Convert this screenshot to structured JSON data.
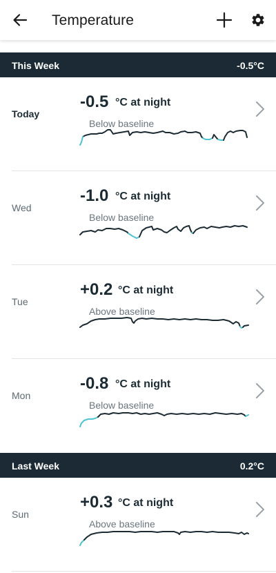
{
  "header": {
    "title": "Temperature",
    "back_icon": "arrow-left-icon",
    "add_icon": "plus-icon",
    "settings_icon": "gear-icon"
  },
  "colors": {
    "header_bg": "#1b2a35",
    "line_dark": "#1c2b33",
    "line_low": "#4fc3d0"
  },
  "sections": [
    {
      "label": "This Week",
      "value": "-0.5°C",
      "days": [
        {
          "day": "Today",
          "value": "-0.5",
          "unit": "°C at night",
          "baseline": "Below baseline",
          "is_today": true
        },
        {
          "day": "Wed",
          "value": "-1.0",
          "unit": "°C at night",
          "baseline": "Below baseline",
          "is_today": false
        },
        {
          "day": "Tue",
          "value": "+0.2",
          "unit": "°C at night",
          "baseline": "Above baseline",
          "is_today": false
        },
        {
          "day": "Mon",
          "value": "-0.8",
          "unit": "°C at night",
          "baseline": "Below baseline",
          "is_today": false
        }
      ]
    },
    {
      "label": "Last Week",
      "value": "0.2°C",
      "days": [
        {
          "day": "Sun",
          "value": "+0.3",
          "unit": "°C at night",
          "baseline": "Above baseline",
          "is_today": false
        }
      ]
    }
  ]
}
